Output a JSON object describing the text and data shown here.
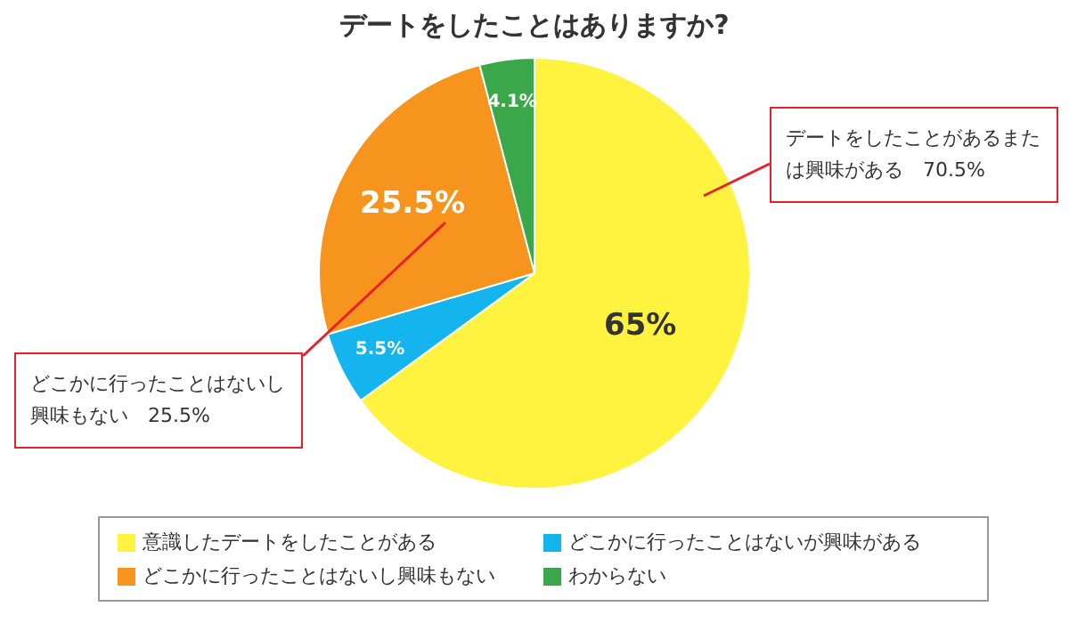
{
  "chart_data": {
    "type": "pie",
    "title": "デートをしたことはありますか?",
    "categories": [
      "意識したデートをしたことがある",
      "どこかに行ったことはないが興味がある",
      "どこかに行ったことはないし興味もない",
      "わからない"
    ],
    "values": [
      65,
      5.5,
      25.5,
      4.1
    ],
    "colors": [
      "#fff33f",
      "#14b4ef",
      "#f7941d",
      "#3aa84a"
    ],
    "value_labels": [
      "65%",
      "5.5%",
      "25.5%",
      "4.1%"
    ],
    "legend": "bottom",
    "annotations": [
      "どこかに行ったことはないし興味もない　25.5%",
      "デートをしたことがあるまたは興味がある　70.5%"
    ]
  }
}
